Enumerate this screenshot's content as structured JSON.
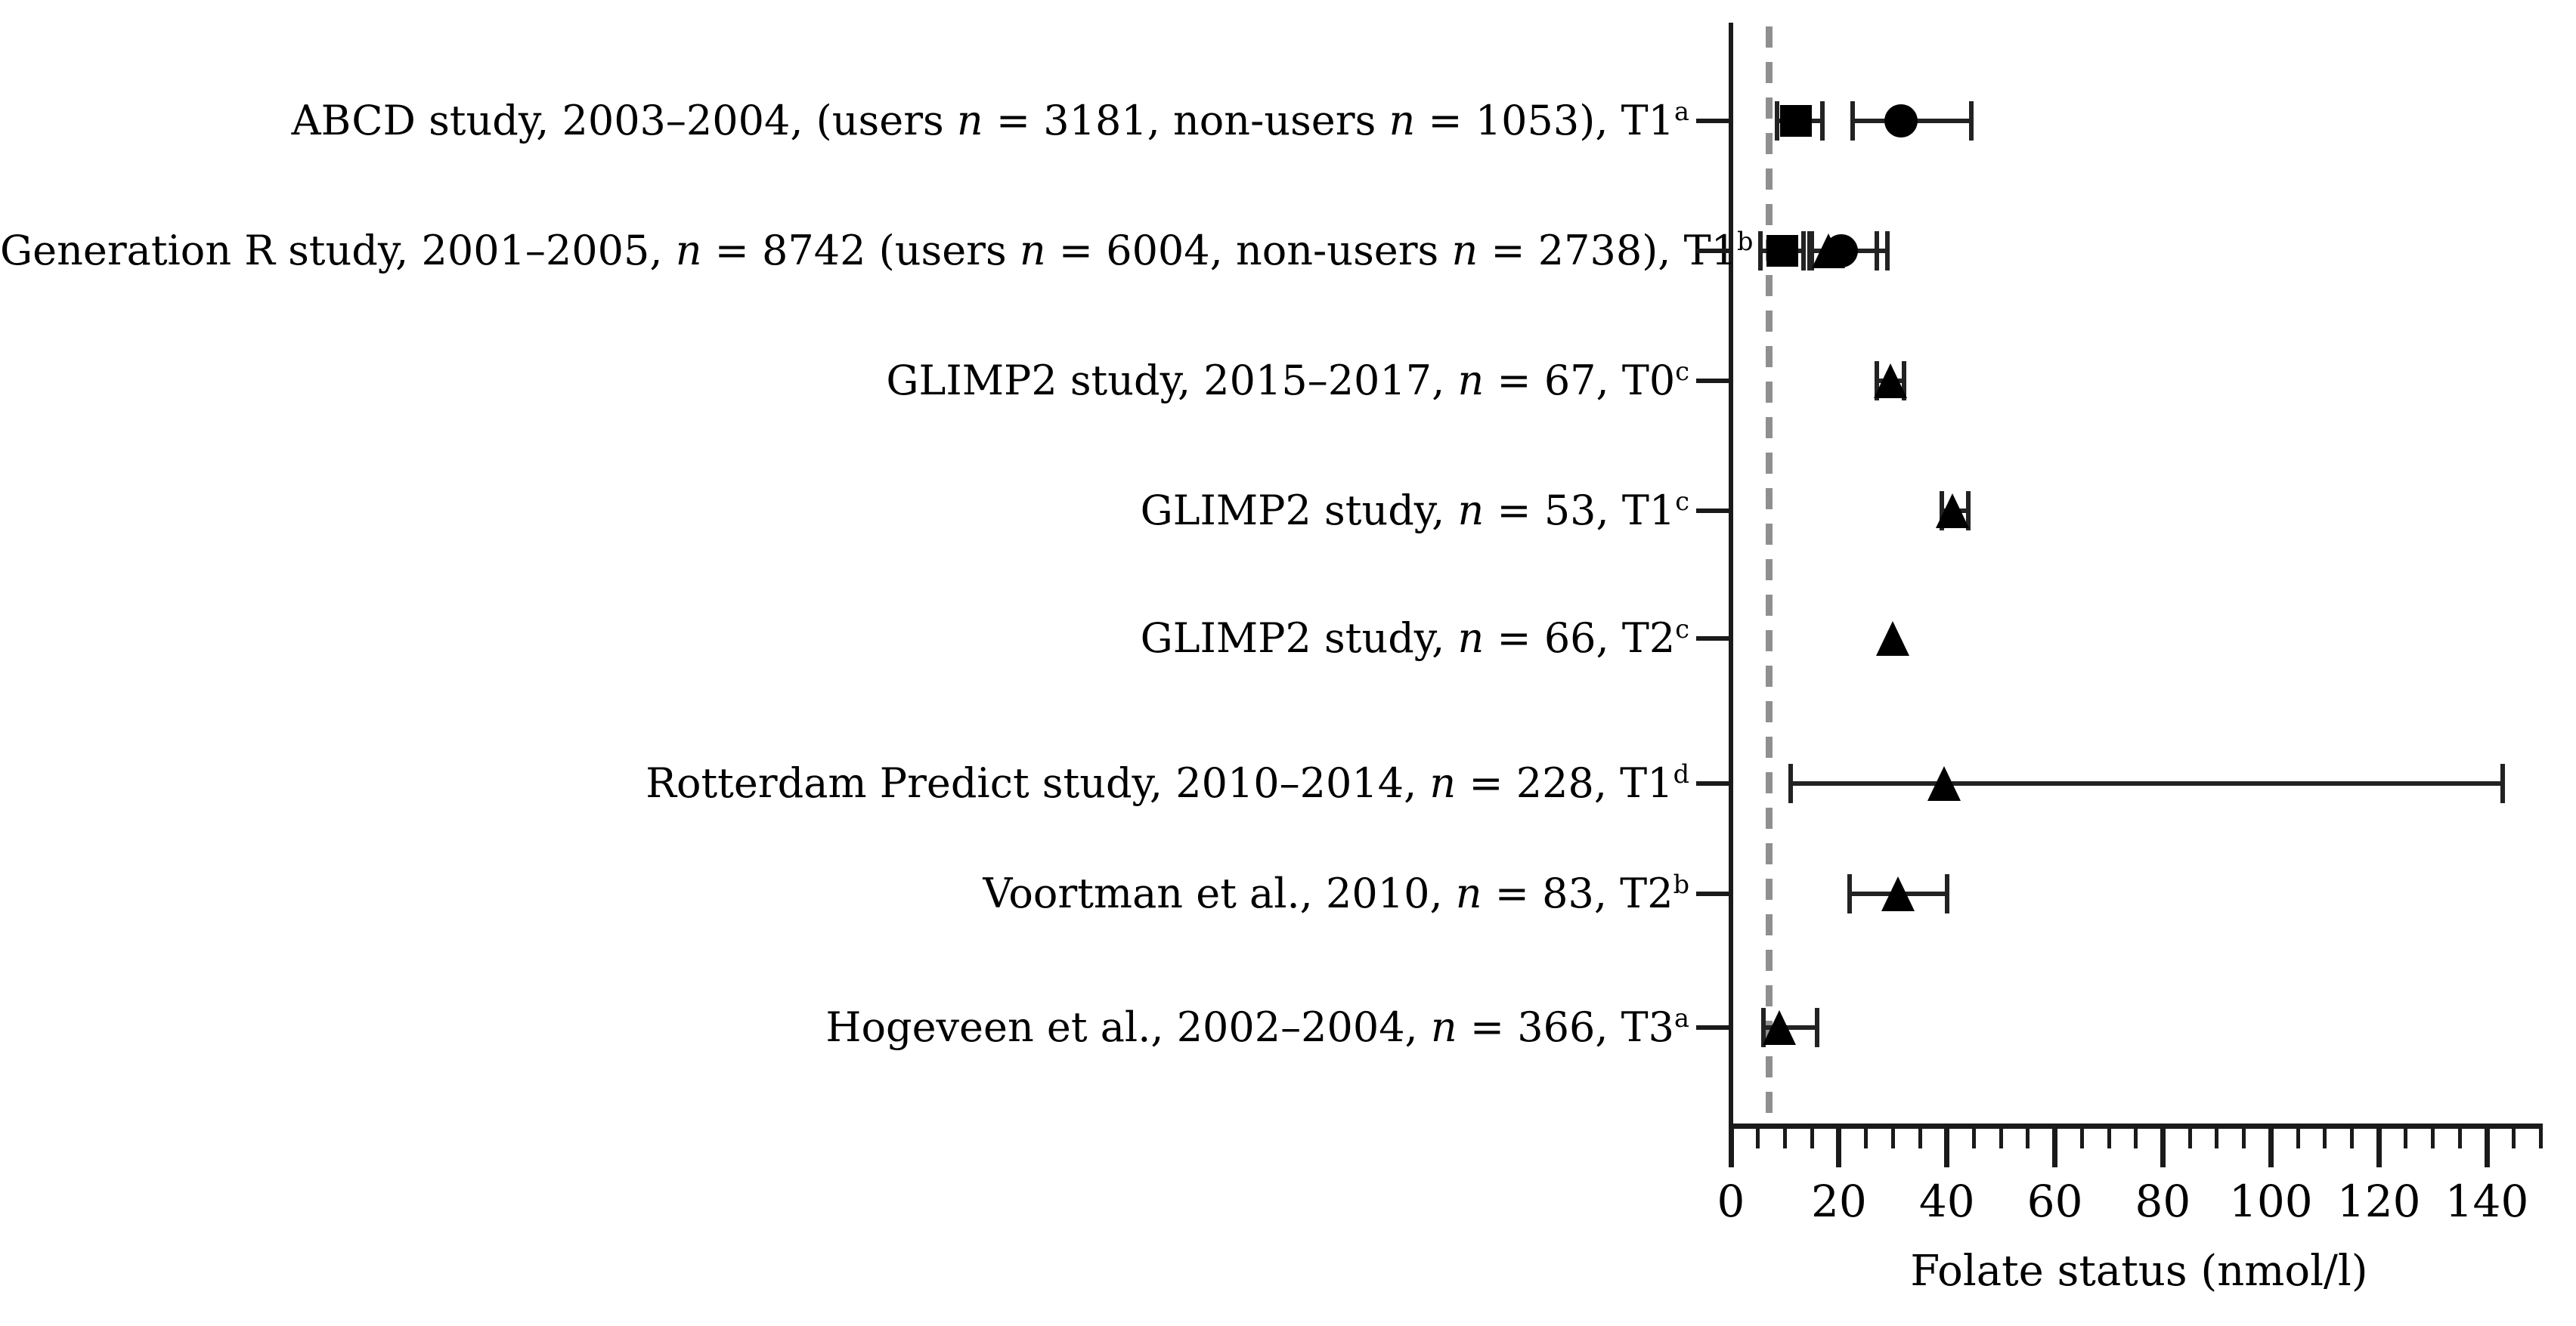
{
  "chart_data": {
    "type": "scatter",
    "subtype": "forest-plot",
    "title": "",
    "xlabel": "Folate status (nmol/l)",
    "ylabel": "",
    "xlim": [
      0,
      150
    ],
    "x_major_ticks": [
      0,
      20,
      40,
      60,
      80,
      100,
      120,
      140
    ],
    "x_minor_step": 5,
    "grid": false,
    "legend": "none",
    "marker_color": "#000000",
    "reference_line": {
      "x": 7,
      "style": "dashed",
      "color": "#8f8f8f"
    },
    "rows": [
      {
        "label": "ABCD study, 2003–2004, (users *n* = 3181, non-users *n* = 1053), T1^a",
        "points": [
          {
            "marker": "square",
            "value": 12,
            "ci": [
              8.5,
              17
            ]
          },
          {
            "marker": "circle",
            "value": 31.5,
            "ci": [
              22.5,
              44.5
            ]
          }
        ]
      },
      {
        "label": "Generation R study, 2001–2005, *n* = 8742 (users *n* = 6004, non-users *n* = 2738), T1^b",
        "points": [
          {
            "marker": "square",
            "value": 9.5,
            "ci": [
              5.5,
              13.5
            ]
          },
          {
            "marker": "triangle",
            "value": 18,
            "ci": [
              14.5,
              27
            ]
          },
          {
            "marker": "circle",
            "value": 20.5,
            "ci": [
              15,
              29
            ]
          }
        ]
      },
      {
        "label": "GLIMP2 study, 2015–2017, *n* = 67, T0^c",
        "points": [
          {
            "marker": "triangle",
            "value": 29.5,
            "ci": [
              27,
              32
            ]
          }
        ]
      },
      {
        "label": "GLIMP2 study, *n* = 53, T1^c",
        "points": [
          {
            "marker": "triangle",
            "value": 41,
            "ci": [
              39,
              44
            ]
          }
        ]
      },
      {
        "label": "GLIMP2 study, *n* = 66, T2^c",
        "points": [
          {
            "marker": "triangle",
            "value": 30,
            "ci": null
          }
        ]
      },
      {
        "label": "Rotterdam Predict study, 2010–2014, *n* = 228, T1^d",
        "points": [
          {
            "marker": "triangle",
            "value": 39.5,
            "ci": [
              11,
              143
            ]
          }
        ]
      },
      {
        "label": "Voortman et al., 2010, *n* = 83, T2^b",
        "points": [
          {
            "marker": "triangle",
            "value": 31,
            "ci": [
              22,
              40
            ]
          }
        ]
      },
      {
        "label": "Hogeveen et al., 2002–2004, *n* = 366, T3^a",
        "points": [
          {
            "marker": "triangle",
            "value": 9,
            "ci": [
              6,
              16
            ]
          }
        ]
      }
    ]
  }
}
